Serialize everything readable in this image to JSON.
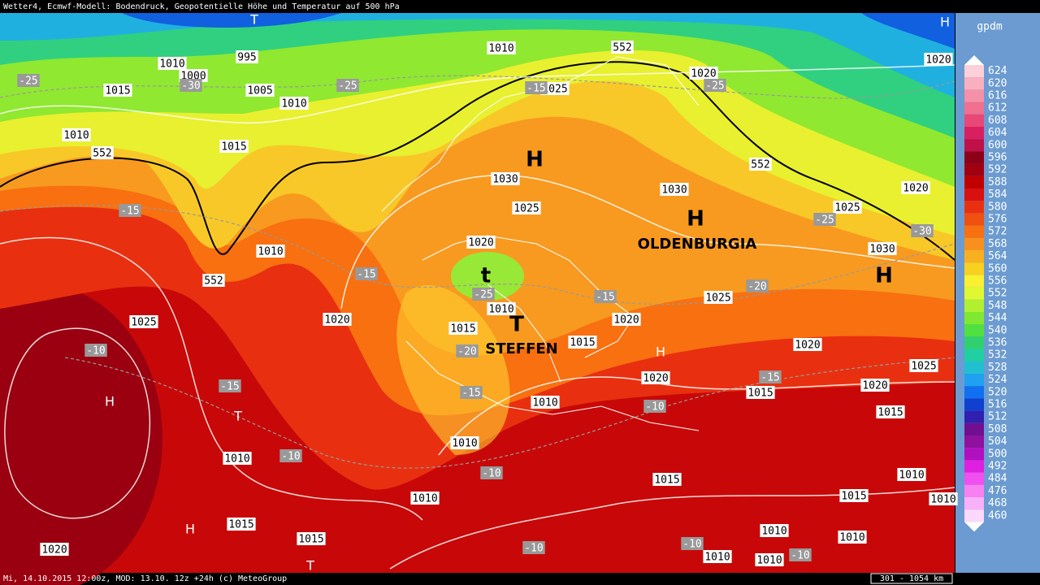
{
  "header": "Wetter4, Ecmwf-Modell: Bodendruck, Geopotentielle Höhe und Temperatur auf 500 hPa",
  "footer": "Mi, 14.10.2015 12:00z, MOD: 13.10. 12z +24h (c) MeteoGroup",
  "scale": "301 - 1054 km",
  "legend": {
    "title": "gpdm",
    "values": [
      624,
      620,
      616,
      612,
      608,
      604,
      600,
      596,
      592,
      588,
      584,
      580,
      576,
      572,
      568,
      564,
      560,
      556,
      552,
      548,
      544,
      540,
      536,
      532,
      528,
      524,
      520,
      516,
      512,
      508,
      504,
      500,
      492,
      484,
      476,
      468,
      460
    ]
  },
  "pressure_labels": [
    1010,
    552,
    1020,
    1020,
    1010,
    995,
    1000,
    1015,
    1005,
    1010,
    1025,
    1010,
    552,
    1015,
    1030,
    552,
    1030,
    1020,
    1025,
    1025,
    1020,
    1030,
    1010,
    552,
    1025,
    1020,
    1010,
    1025,
    1015,
    1020,
    1015,
    1020,
    1025,
    1020,
    1015,
    1020,
    1015,
    1010,
    1010,
    1010,
    1010,
    1015,
    1015,
    1010,
    1010,
    1015,
    1015,
    1010,
    1010,
    1020,
    1010,
    1010
  ],
  "temperature_labels": [
    -25,
    -30,
    -25,
    -15,
    -25,
    -15,
    -25,
    -30,
    -15,
    -25,
    -20,
    -15,
    -10,
    -20,
    -15,
    -15,
    -15,
    -10,
    -10,
    -10,
    -10,
    -10,
    -10
  ],
  "markers": [
    "H",
    "H",
    "H",
    "t",
    "T",
    "T",
    "H",
    "H",
    "H",
    "T",
    "H",
    "T"
  ],
  "names": [
    "OLDENBURGIA",
    "STEFFEN"
  ]
}
